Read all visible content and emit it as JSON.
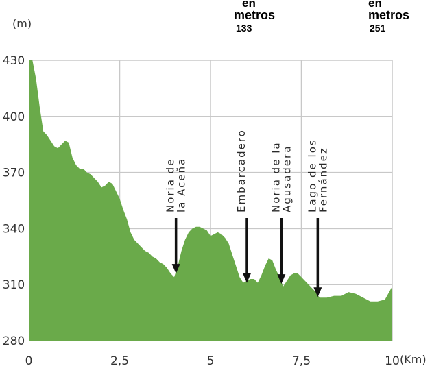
{
  "chart_data": {
    "type": "area",
    "y_unit": "(m)",
    "x_unit": "(Km)",
    "xlim": [
      0,
      10
    ],
    "ylim": [
      280,
      430
    ],
    "x_ticks": [
      {
        "value": 0,
        "label": "0"
      },
      {
        "value": 2.5,
        "label": "2,5"
      },
      {
        "value": 5,
        "label": "5"
      },
      {
        "value": 7.5,
        "label": "7,5"
      },
      {
        "value": 10,
        "label": "10"
      }
    ],
    "y_ticks": [
      {
        "value": 280,
        "label": "280"
      },
      {
        "value": 310,
        "label": "310"
      },
      {
        "value": 340,
        "label": "340"
      },
      {
        "value": 370,
        "label": "370"
      },
      {
        "value": 400,
        "label": "400"
      },
      {
        "value": 430,
        "label": "430"
      }
    ],
    "grid": true,
    "fill_color": "#6aaa4a",
    "grid_color": "#c8c8c8",
    "series": [
      {
        "x": [
          0,
          0.1,
          0.2,
          0.3,
          0.4,
          0.5,
          0.6,
          0.7,
          0.8,
          0.9,
          1.0,
          1.1,
          1.2,
          1.3,
          1.4,
          1.5,
          1.6,
          1.7,
          1.8,
          1.9,
          2.0,
          2.1,
          2.2,
          2.3,
          2.4,
          2.5,
          2.6,
          2.7,
          2.8,
          2.9,
          3.0,
          3.1,
          3.2,
          3.3,
          3.4,
          3.5,
          3.6,
          3.7,
          3.8,
          3.9,
          4.0,
          4.1,
          4.2,
          4.3,
          4.4,
          4.5,
          4.6,
          4.7,
          4.8,
          4.9,
          5.0,
          5.1,
          5.2,
          5.3,
          5.4,
          5.5,
          5.6,
          5.7,
          5.8,
          5.9,
          6.0,
          6.1,
          6.2,
          6.3,
          6.4,
          6.5,
          6.6,
          6.7,
          6.8,
          6.9,
          7.0,
          7.1,
          7.2,
          7.3,
          7.4,
          7.5,
          7.6,
          7.7,
          7.8,
          7.9,
          8.0,
          8.2,
          8.4,
          8.6,
          8.8,
          9.0,
          9.2,
          9.4,
          9.6,
          9.8,
          10.0
        ],
        "y": [
          430,
          430,
          420,
          405,
          392,
          390,
          387,
          384,
          383,
          385,
          387,
          386,
          378,
          374,
          372,
          372,
          370,
          369,
          367,
          365,
          362,
          363,
          365,
          364,
          360,
          356,
          350,
          345,
          338,
          334,
          332,
          330,
          328,
          327,
          325,
          324,
          322,
          321,
          319,
          316,
          314,
          320,
          328,
          334,
          338,
          340,
          341,
          341,
          340,
          339,
          336,
          337,
          338,
          337,
          335,
          332,
          326,
          320,
          314,
          311,
          312,
          313,
          313,
          311,
          315,
          320,
          324,
          323,
          318,
          314,
          309,
          312,
          315,
          316,
          316,
          314,
          312,
          310,
          308,
          306,
          303,
          303,
          304,
          304,
          306,
          305,
          303,
          301,
          301,
          302,
          309
        ]
      }
    ],
    "markers": [
      {
        "x": 4.05,
        "label_line1": "Noria de",
        "label_line2": "la Aceña"
      },
      {
        "x": 6.0,
        "label_line1": "Embarcadero",
        "label_line2": ""
      },
      {
        "x": 6.95,
        "label_line1": "Noria de la",
        "label_line2": "Agusadera"
      },
      {
        "x": 7.95,
        "label_line1": "Lago de los",
        "label_line2": "Fernández"
      }
    ]
  },
  "header": {
    "block1": {
      "line1": "en",
      "line2": "metros",
      "number": "133"
    },
    "block2": {
      "line1": "en",
      "line2": "metros",
      "number": "251"
    }
  }
}
